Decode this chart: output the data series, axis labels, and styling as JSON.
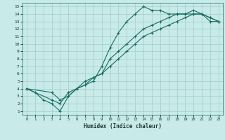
{
  "title": "",
  "xlabel": "Humidex (Indice chaleur)",
  "bg_color": "#c8eae8",
  "grid_color": "#9ecece",
  "line_color": "#1a6b60",
  "xlim": [
    -0.5,
    23.5
  ],
  "ylim": [
    0.5,
    15.5
  ],
  "xticks": [
    0,
    1,
    2,
    3,
    4,
    5,
    6,
    7,
    8,
    9,
    10,
    11,
    12,
    13,
    14,
    15,
    16,
    17,
    18,
    19,
    20,
    21,
    22,
    23
  ],
  "yticks": [
    1,
    2,
    3,
    4,
    5,
    6,
    7,
    8,
    9,
    10,
    11,
    12,
    13,
    14,
    15
  ],
  "line1": {
    "x": [
      0,
      1,
      2,
      3,
      4,
      5,
      6,
      7,
      8,
      9,
      10,
      11,
      12,
      13,
      14,
      15,
      16,
      17,
      18,
      19,
      20,
      21,
      22,
      23
    ],
    "y": [
      4,
      3.5,
      2.5,
      2.0,
      1.0,
      3.0,
      4.0,
      4.5,
      5.0,
      7.0,
      9.5,
      11.5,
      13.0,
      14.0,
      15.0,
      14.5,
      14.5,
      14.0,
      14.0,
      14.0,
      14.0,
      14.0,
      13.0,
      13.0
    ]
  },
  "line2": {
    "x": [
      0,
      3,
      4,
      5,
      6,
      7,
      8,
      9,
      10,
      11,
      12,
      13,
      14,
      15,
      16,
      17,
      18,
      19,
      20,
      21,
      22,
      23
    ],
    "y": [
      4,
      3.5,
      2.5,
      3.0,
      4.0,
      5.0,
      5.5,
      6.0,
      7.0,
      8.0,
      9.0,
      10.0,
      11.0,
      11.5,
      12.0,
      12.5,
      13.0,
      13.5,
      14.0,
      14.0,
      13.5,
      13.0
    ]
  },
  "line3": {
    "x": [
      0,
      3,
      4,
      5,
      6,
      7,
      8,
      9,
      10,
      11,
      12,
      13,
      14,
      15,
      16,
      17,
      18,
      19,
      20,
      21,
      22,
      23
    ],
    "y": [
      4,
      2.5,
      2.0,
      3.5,
      4.0,
      4.5,
      5.5,
      6.0,
      8.0,
      9.0,
      10.0,
      11.0,
      12.0,
      12.5,
      13.0,
      13.5,
      14.0,
      14.0,
      14.5,
      14.0,
      13.5,
      13.0
    ]
  }
}
